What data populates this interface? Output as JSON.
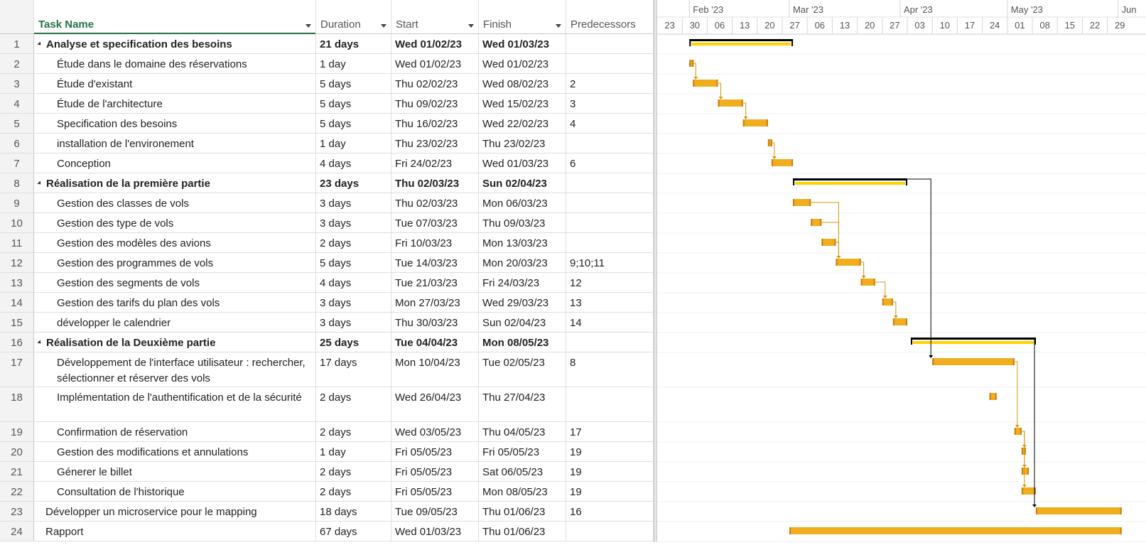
{
  "columns": {
    "task_name": "Task Name",
    "duration": "Duration",
    "start": "Start",
    "finish": "Finish",
    "predecessors": "Predecessors"
  },
  "timescale": {
    "months": [
      "Feb '23",
      "Mar '23",
      "Apr '23",
      "May '23",
      "Jun"
    ],
    "days": [
      "23",
      "30",
      "06",
      "13",
      "20",
      "27",
      "06",
      "13",
      "20",
      "27",
      "03",
      "10",
      "17",
      "24",
      "01",
      "08",
      "15",
      "22",
      "29"
    ]
  },
  "colors": {
    "bar_fill": "#f0ad1e",
    "bar_edge": "#d07a10",
    "summary_fill": "#ffd200",
    "summary_outline": "#000000",
    "link_color": "#d09a10",
    "grid_header_green": "#217346"
  },
  "tasks": [
    {
      "id": "1",
      "name": "Analyse et specification des besoins",
      "duration": "21 days",
      "start": "Wed 01/02/23",
      "finish": "Wed 01/03/23",
      "pred": "",
      "summary": true,
      "indent": 0
    },
    {
      "id": "2",
      "name": "Étude dans le domaine des réservations",
      "duration": "1 day",
      "start": "Wed 01/02/23",
      "finish": "Wed 01/02/23",
      "pred": "",
      "summary": false,
      "indent": 1
    },
    {
      "id": "3",
      "name": "Étude d'existant",
      "duration": "5 days",
      "start": "Thu 02/02/23",
      "finish": "Wed 08/02/23",
      "pred": "2",
      "summary": false,
      "indent": 1
    },
    {
      "id": "4",
      "name": " Étude de l'architecture",
      "duration": "5 days",
      "start": "Thu 09/02/23",
      "finish": "Wed 15/02/23",
      "pred": "3",
      "summary": false,
      "indent": 1
    },
    {
      "id": "5",
      "name": "Specification des besoins",
      "duration": "5 days",
      "start": "Thu 16/02/23",
      "finish": "Wed 22/02/23",
      "pred": "4",
      "summary": false,
      "indent": 1
    },
    {
      "id": "6",
      "name": "installation de l'environement",
      "duration": "1 day",
      "start": "Thu 23/02/23",
      "finish": "Thu 23/02/23",
      "pred": "",
      "summary": false,
      "indent": 1
    },
    {
      "id": "7",
      "name": "Conception",
      "duration": "4 days",
      "start": "Fri 24/02/23",
      "finish": "Wed 01/03/23",
      "pred": "6",
      "summary": false,
      "indent": 1
    },
    {
      "id": "8",
      "name": "Réalisation de la première partie",
      "duration": "23 days",
      "start": "Thu 02/03/23",
      "finish": "Sun 02/04/23",
      "pred": "",
      "summary": true,
      "indent": 0
    },
    {
      "id": "9",
      "name": "Gestion des classes de vols",
      "duration": "3 days",
      "start": "Thu 02/03/23",
      "finish": "Mon 06/03/23",
      "pred": "",
      "summary": false,
      "indent": 1
    },
    {
      "id": "10",
      "name": "Gestion des type de vols",
      "duration": "3 days",
      "start": "Tue 07/03/23",
      "finish": "Thu 09/03/23",
      "pred": "",
      "summary": false,
      "indent": 1
    },
    {
      "id": "11",
      "name": "Gestion des modèles des avions",
      "duration": "2 days",
      "start": "Fri 10/03/23",
      "finish": "Mon 13/03/23",
      "pred": "",
      "summary": false,
      "indent": 1
    },
    {
      "id": "12",
      "name": "Gestion des programmes de vols",
      "duration": "5 days",
      "start": "Tue 14/03/23",
      "finish": "Mon 20/03/23",
      "pred": "9;10;11",
      "summary": false,
      "indent": 1
    },
    {
      "id": "13",
      "name": "Gestion des segments de vols",
      "duration": "4 days",
      "start": "Tue 21/03/23",
      "finish": "Fri 24/03/23",
      "pred": "12",
      "summary": false,
      "indent": 1
    },
    {
      "id": "14",
      "name": "Gestion des tarifs du plan des vols",
      "duration": "3 days",
      "start": "Mon 27/03/23",
      "finish": "Wed 29/03/23",
      "pred": "13",
      "summary": false,
      "indent": 1
    },
    {
      "id": "15",
      "name": "développer le calendrier",
      "duration": "3 days",
      "start": "Thu 30/03/23",
      "finish": "Sun 02/04/23",
      "pred": "14",
      "summary": false,
      "indent": 1
    },
    {
      "id": "16",
      "name": "Réalisation de la Deuxième partie",
      "duration": "25 days",
      "start": "Tue 04/04/23",
      "finish": "Mon 08/05/23",
      "pred": "",
      "summary": true,
      "indent": 0
    },
    {
      "id": "17",
      "name": "Développement de l'interface utilisateur : rechercher, sélectionner et réserver des vols",
      "duration": "17 days",
      "start": "Mon 10/04/23",
      "finish": "Tue 02/05/23",
      "pred": "8",
      "summary": false,
      "indent": 1,
      "tall": true
    },
    {
      "id": "18",
      "name": "Implémentation de l'authentification et de la sécurité",
      "duration": "2 days",
      "start": "Wed 26/04/23",
      "finish": "Thu 27/04/23",
      "pred": "",
      "summary": false,
      "indent": 1,
      "tall": true
    },
    {
      "id": "19",
      "name": "Confirmation de réservation",
      "duration": "2 days",
      "start": "Wed 03/05/23",
      "finish": "Thu 04/05/23",
      "pred": "17",
      "summary": false,
      "indent": 1
    },
    {
      "id": "20",
      "name": "Gestion des modifications et annulations",
      "duration": "1 day",
      "start": "Fri 05/05/23",
      "finish": "Fri 05/05/23",
      "pred": "19",
      "summary": false,
      "indent": 1
    },
    {
      "id": "21",
      "name": "Génerer le billet",
      "duration": "2 days",
      "start": "Fri 05/05/23",
      "finish": "Sat 06/05/23",
      "pred": "19",
      "summary": false,
      "indent": 1
    },
    {
      "id": "22",
      "name": "Consultation de l'historique",
      "duration": "2 days",
      "start": "Fri 05/05/23",
      "finish": "Mon 08/05/23",
      "pred": "19",
      "summary": false,
      "indent": 1
    },
    {
      "id": "23",
      "name": "Développer un microservice pour le mapping",
      "duration": "18 days",
      "start": "Tue 09/05/23",
      "finish": "Thu 01/06/23",
      "pred": "16",
      "summary": false,
      "indent": 0
    },
    {
      "id": "24",
      "name": "Rapport",
      "duration": "67 days",
      "start": "Wed 01/03/23",
      "finish": "Thu 01/06/23",
      "pred": "",
      "summary": false,
      "indent": 0
    }
  ]
}
